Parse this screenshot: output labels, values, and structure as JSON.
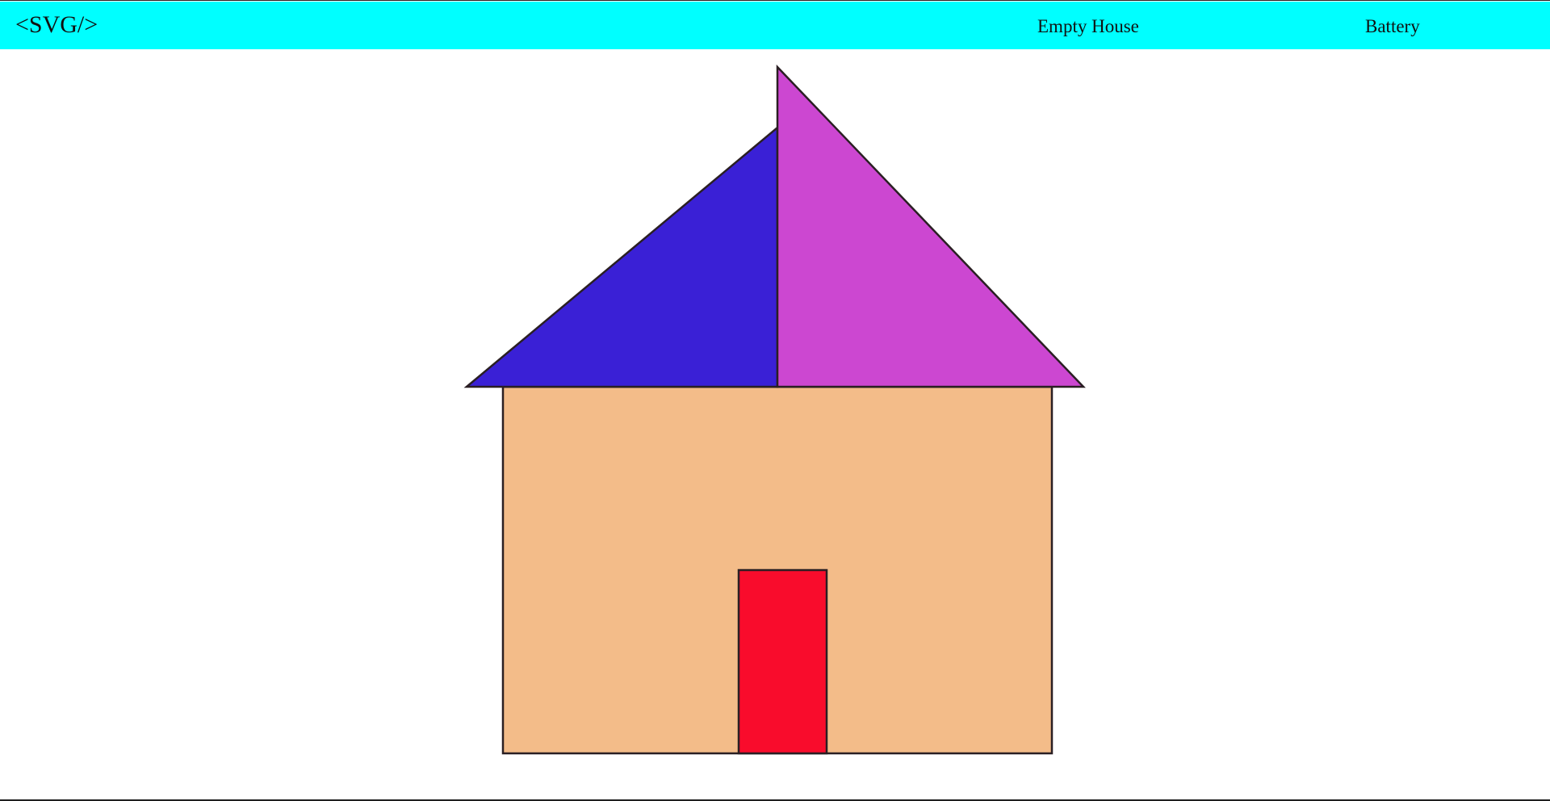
{
  "navbar": {
    "brand": "<SVG/>",
    "links": [
      {
        "label": "Empty House"
      },
      {
        "label": "Battery"
      }
    ],
    "background_color": "#00ffff"
  },
  "drawing": {
    "stroke_color": "#2a1f23",
    "roof_left_color": "#3a20d6",
    "roof_right_color": "#cc47d1",
    "wall_color": "#f3bc89",
    "door_color": "#f90c2c"
  }
}
